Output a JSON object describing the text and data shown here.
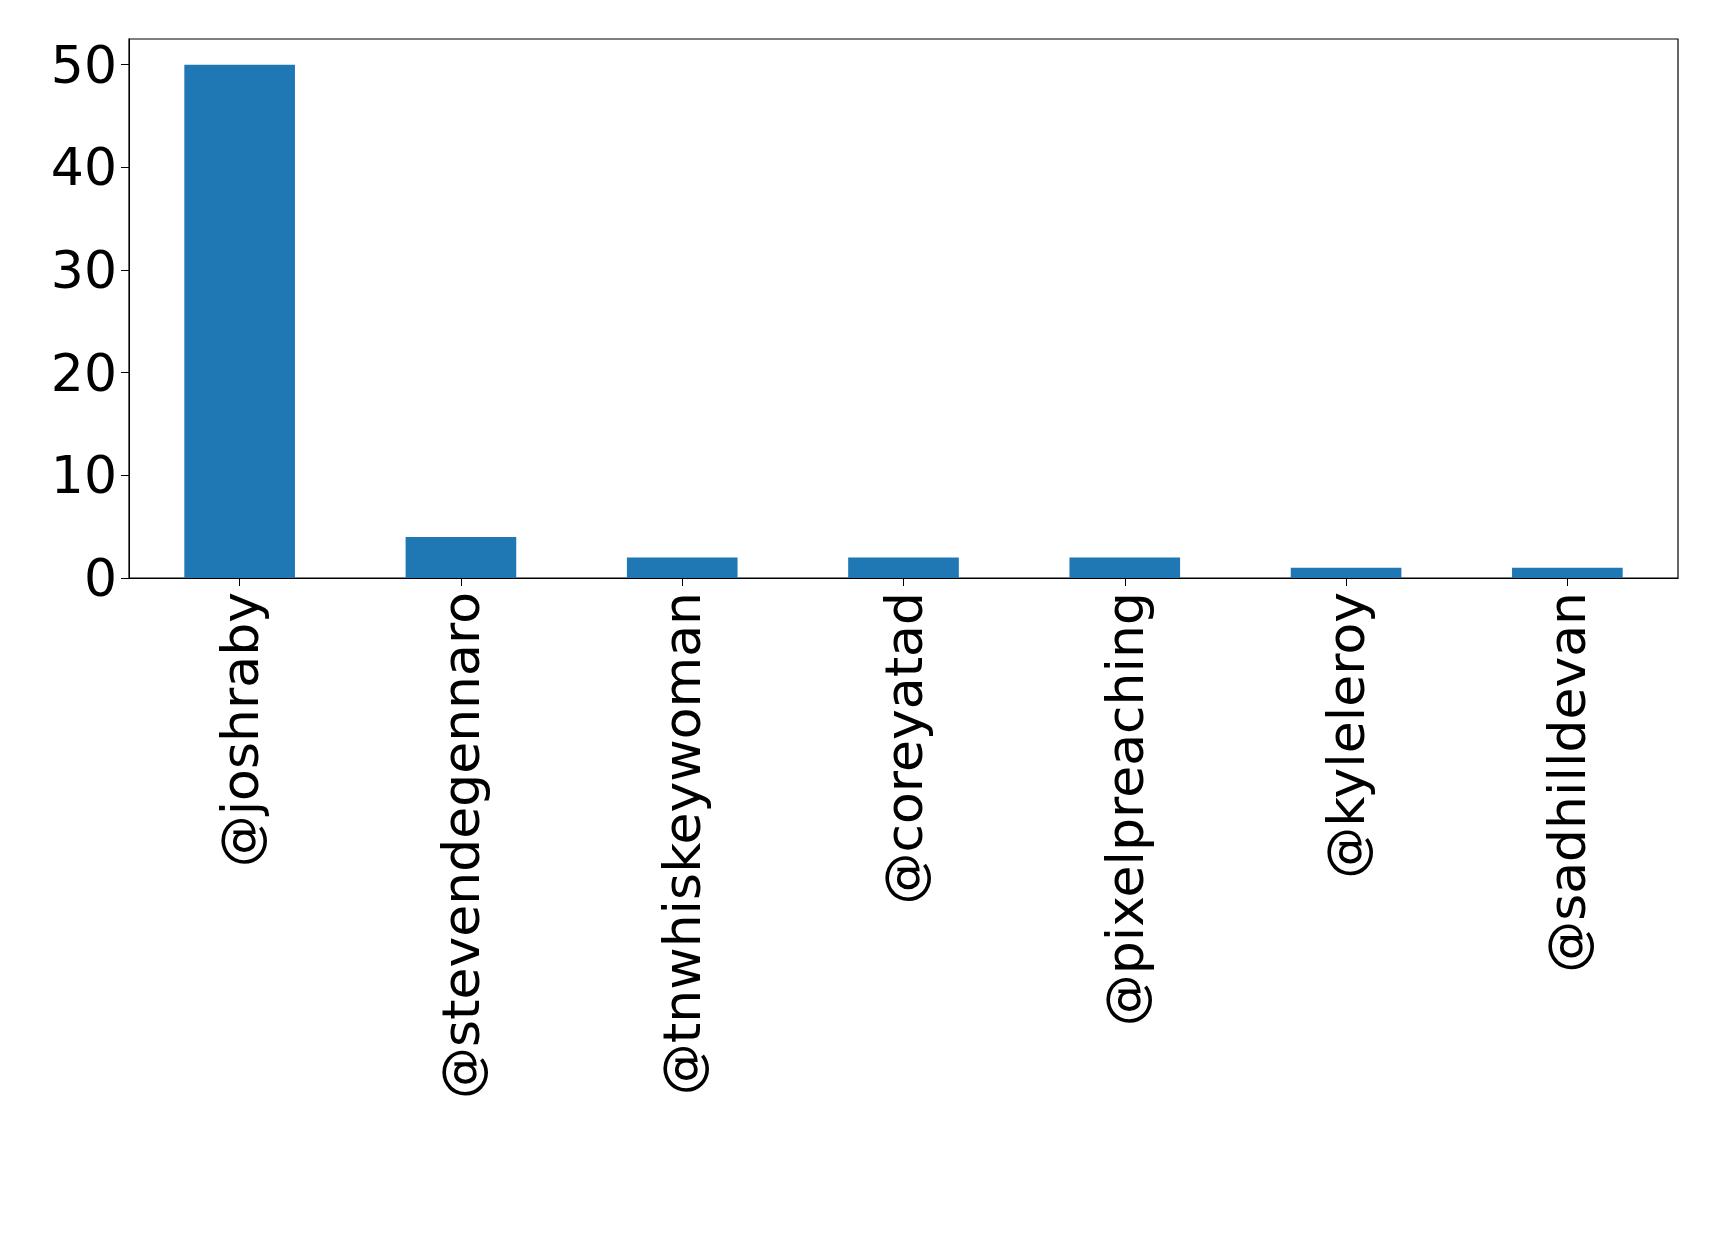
{
  "chart_data": {
    "type": "bar",
    "categories": [
      "@joshraby",
      "@stevendegennaro",
      "@tnwhiskeywoman",
      "@coreyatad",
      "@pixelpreaching",
      "@kyleleroy",
      "@sadhilldevan"
    ],
    "values": [
      50,
      4,
      2,
      2,
      2,
      1,
      1
    ],
    "color": "#1f77b4",
    "ylim": [
      0,
      52.5
    ],
    "yticks": [
      0,
      10,
      20,
      30,
      40,
      50
    ]
  }
}
